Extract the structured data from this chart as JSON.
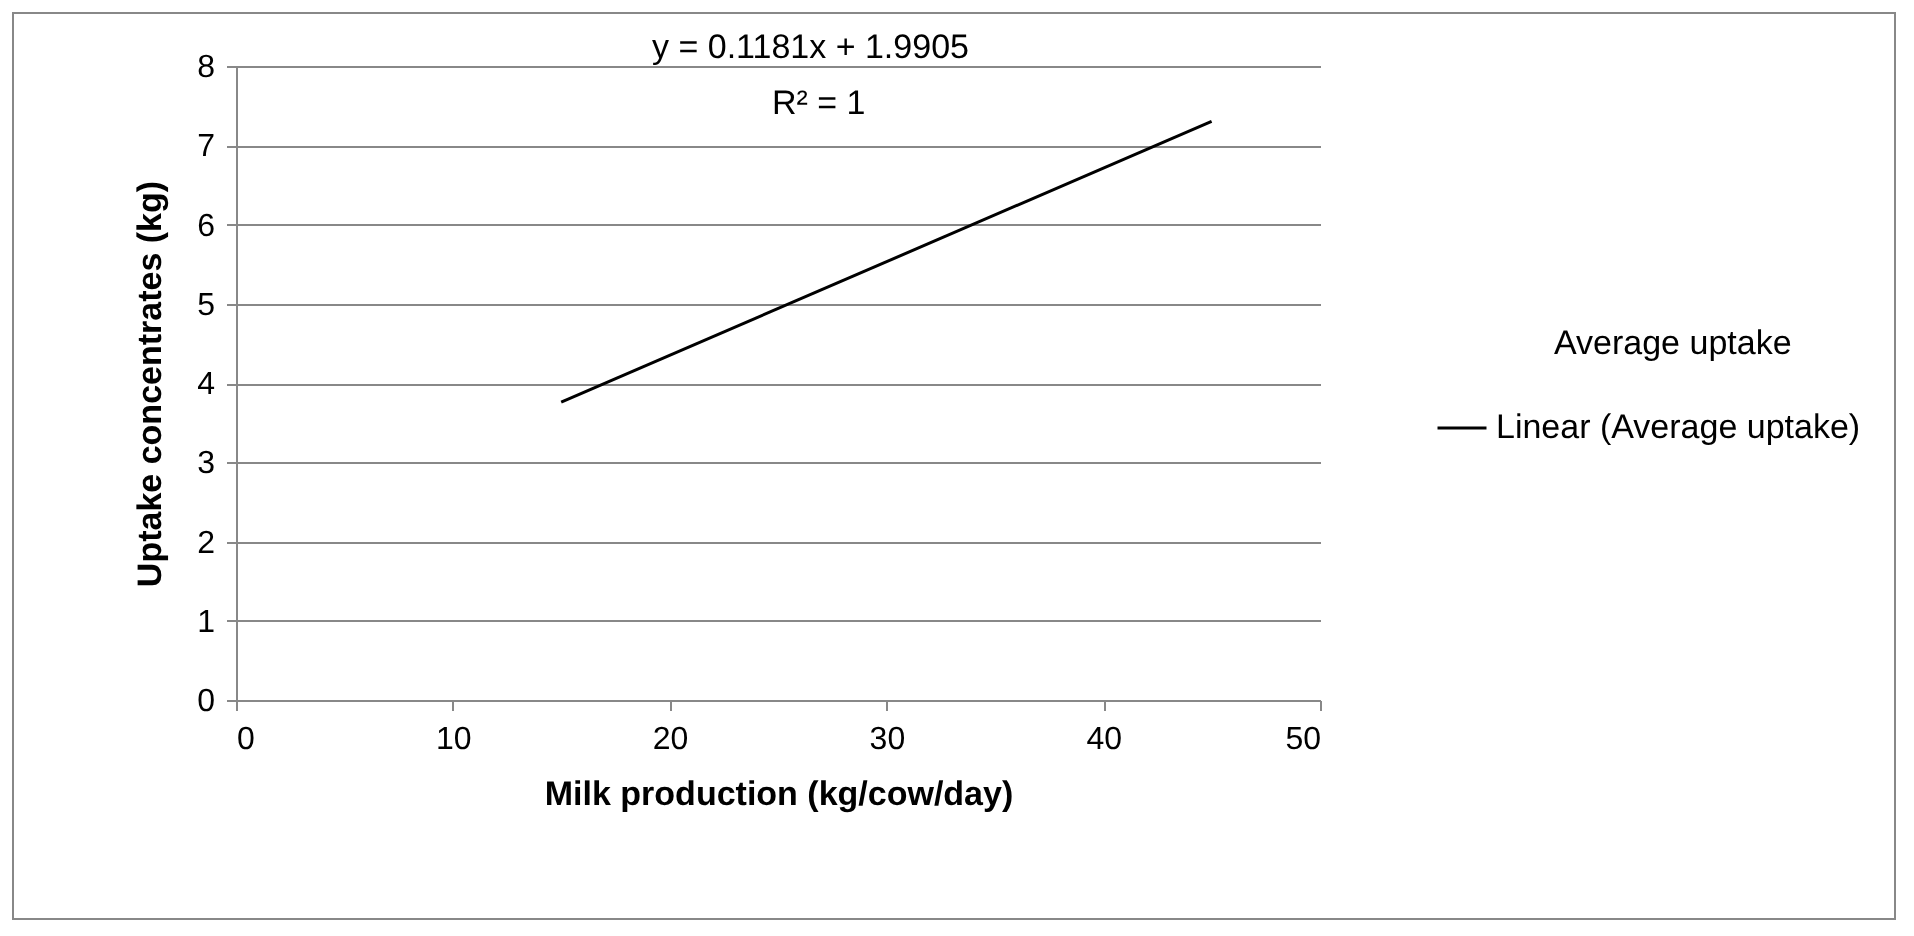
{
  "chart_data": {
    "type": "line",
    "xlabel": "Milk production (kg/cow/day)",
    "ylabel": "Uptake concentrates (kg)",
    "x": [
      15,
      45
    ],
    "series": [
      {
        "name": "Linear (Average uptake)",
        "color": "#000000",
        "values": [
          3.76,
          7.3
        ]
      }
    ],
    "xlim": [
      0,
      50
    ],
    "xticks": [
      0,
      10,
      20,
      30,
      40,
      50
    ],
    "ylim": [
      0,
      8
    ],
    "yticks": [
      0,
      1,
      2,
      3,
      4,
      5,
      6,
      7,
      8
    ],
    "grid": "y",
    "legend": "right",
    "marker": "none",
    "line_style": "solid",
    "annotations": [
      "y = 0.1181x + 1.9905",
      "R² = 1",
      "Average uptake"
    ]
  }
}
